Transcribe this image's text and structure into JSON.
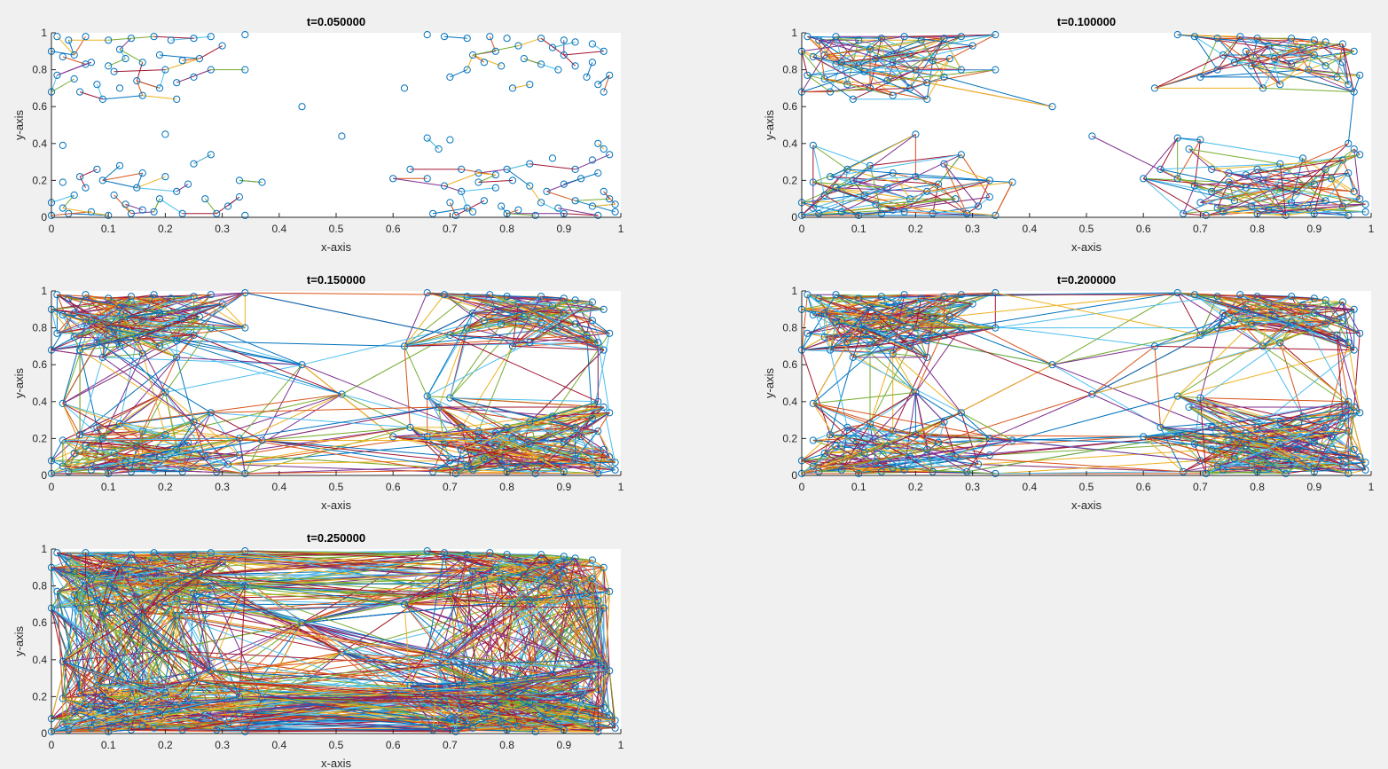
{
  "figure": {
    "background": "#f0f0f0",
    "axes_background": "#ffffff",
    "marker_color": "#0072bd",
    "line_colors": [
      "#0072bd",
      "#d95319",
      "#edb120",
      "#7e2f8e",
      "#77ac30",
      "#4dbeee",
      "#a2142f"
    ]
  },
  "chart_data": [
    {
      "type": "scatter",
      "title": "t=0.050000",
      "xlabel": "x-axis",
      "ylabel": "y-axis",
      "xlim": [
        0,
        1
      ],
      "ylim": [
        0,
        1
      ],
      "xticks": [
        0,
        0.1,
        0.2,
        0.3,
        0.4,
        0.5,
        0.6,
        0.7,
        0.8,
        0.9,
        1
      ],
      "yticks": [
        0,
        0.2,
        0.4,
        0.6,
        0.8,
        1
      ],
      "xtick_labels": [
        "0",
        "0.1",
        "0.2",
        "0.3",
        "0.4",
        "0.5",
        "0.6",
        "0.7",
        "0.8",
        "0.9",
        "1"
      ],
      "ytick_labels": [
        "0",
        "0.2",
        "0.4",
        "0.6",
        "0.8",
        "1"
      ],
      "grid": false,
      "marker": "open-circle",
      "connection_density": "sparse"
    },
    {
      "type": "scatter",
      "title": "t=0.100000",
      "xlabel": "x-axis",
      "ylabel": "y-axis",
      "xlim": [
        0,
        1
      ],
      "ylim": [
        0,
        1
      ],
      "xticks": [
        0,
        0.1,
        0.2,
        0.3,
        0.4,
        0.5,
        0.6,
        0.7,
        0.8,
        0.9,
        1
      ],
      "yticks": [
        0,
        0.2,
        0.4,
        0.6,
        0.8,
        1
      ],
      "xtick_labels": [
        "0",
        "0.1",
        "0.2",
        "0.3",
        "0.4",
        "0.5",
        "0.6",
        "0.7",
        "0.8",
        "0.9",
        "1"
      ],
      "ytick_labels": [
        "0",
        "0.2",
        "0.4",
        "0.6",
        "0.8",
        "1"
      ],
      "grid": false,
      "marker": "open-circle",
      "connection_density": "moderate"
    },
    {
      "type": "scatter",
      "title": "t=0.150000",
      "xlabel": "x-axis",
      "ylabel": "y-axis",
      "xlim": [
        0,
        1
      ],
      "ylim": [
        0,
        1
      ],
      "xticks": [
        0,
        0.1,
        0.2,
        0.3,
        0.4,
        0.5,
        0.6,
        0.7,
        0.8,
        0.9,
        1
      ],
      "yticks": [
        0,
        0.2,
        0.4,
        0.6,
        0.8,
        1
      ],
      "xtick_labels": [
        "0",
        "0.1",
        "0.2",
        "0.3",
        "0.4",
        "0.5",
        "0.6",
        "0.7",
        "0.8",
        "0.9",
        "1"
      ],
      "ytick_labels": [
        "0",
        "0.2",
        "0.4",
        "0.6",
        "0.8",
        "1"
      ],
      "grid": false,
      "marker": "open-circle",
      "connection_density": "dense"
    },
    {
      "type": "scatter",
      "title": "t=0.200000",
      "xlabel": "x-axis",
      "ylabel": "y-axis",
      "xlim": [
        0,
        1
      ],
      "ylim": [
        0,
        1
      ],
      "xticks": [
        0,
        0.1,
        0.2,
        0.3,
        0.4,
        0.5,
        0.6,
        0.7,
        0.8,
        0.9,
        1
      ],
      "yticks": [
        0,
        0.2,
        0.4,
        0.6,
        0.8,
        1
      ],
      "xtick_labels": [
        "0",
        "0.1",
        "0.2",
        "0.3",
        "0.4",
        "0.5",
        "0.6",
        "0.7",
        "0.8",
        "0.9",
        "1"
      ],
      "ytick_labels": [
        "0",
        "0.2",
        "0.4",
        "0.6",
        "0.8",
        "1"
      ],
      "grid": false,
      "marker": "open-circle",
      "connection_density": "dense"
    },
    {
      "type": "scatter",
      "title": "t=0.250000",
      "xlabel": "x-axis",
      "ylabel": "y-axis",
      "xlim": [
        0,
        1
      ],
      "ylim": [
        0,
        1
      ],
      "xticks": [
        0,
        0.1,
        0.2,
        0.3,
        0.4,
        0.5,
        0.6,
        0.7,
        0.8,
        0.9,
        1
      ],
      "yticks": [
        0,
        0.2,
        0.4,
        0.6,
        0.8,
        1
      ],
      "xtick_labels": [
        "0",
        "0.1",
        "0.2",
        "0.3",
        "0.4",
        "0.5",
        "0.6",
        "0.7",
        "0.8",
        "0.9",
        "1"
      ],
      "ytick_labels": [
        "0",
        "0.2",
        "0.4",
        "0.6",
        "0.8",
        "1"
      ],
      "grid": false,
      "marker": "open-circle",
      "connection_density": "very-dense"
    }
  ],
  "nodes": [
    [
      0.01,
      0.98
    ],
    [
      0.03,
      0.96
    ],
    [
      0.06,
      0.98
    ],
    [
      0.1,
      0.96
    ],
    [
      0.14,
      0.97
    ],
    [
      0.18,
      0.98
    ],
    [
      0.21,
      0.96
    ],
    [
      0.25,
      0.97
    ],
    [
      0.28,
      0.98
    ],
    [
      0.34,
      0.99
    ],
    [
      0.0,
      0.9
    ],
    [
      0.02,
      0.87
    ],
    [
      0.04,
      0.88
    ],
    [
      0.07,
      0.84
    ],
    [
      0.1,
      0.82
    ],
    [
      0.13,
      0.86
    ],
    [
      0.16,
      0.84
    ],
    [
      0.19,
      0.88
    ],
    [
      0.23,
      0.85
    ],
    [
      0.26,
      0.86
    ],
    [
      0.01,
      0.77
    ],
    [
      0.04,
      0.75
    ],
    [
      0.08,
      0.72
    ],
    [
      0.11,
      0.79
    ],
    [
      0.15,
      0.74
    ],
    [
      0.19,
      0.7
    ],
    [
      0.22,
      0.73
    ],
    [
      0.25,
      0.76
    ],
    [
      0.28,
      0.8
    ],
    [
      0.34,
      0.8
    ],
    [
      0.0,
      0.68
    ],
    [
      0.05,
      0.68
    ],
    [
      0.09,
      0.64
    ],
    [
      0.12,
      0.7
    ],
    [
      0.16,
      0.66
    ],
    [
      0.22,
      0.64
    ],
    [
      0.06,
      0.83
    ],
    [
      0.12,
      0.91
    ],
    [
      0.2,
      0.8
    ],
    [
      0.3,
      0.93
    ],
    [
      0.66,
      0.99
    ],
    [
      0.69,
      0.98
    ],
    [
      0.73,
      0.97
    ],
    [
      0.77,
      0.98
    ],
    [
      0.8,
      0.97
    ],
    [
      0.86,
      0.97
    ],
    [
      0.9,
      0.96
    ],
    [
      0.92,
      0.95
    ],
    [
      0.95,
      0.94
    ],
    [
      0.97,
      0.9
    ],
    [
      0.7,
      0.76
    ],
    [
      0.73,
      0.8
    ],
    [
      0.76,
      0.84
    ],
    [
      0.79,
      0.82
    ],
    [
      0.83,
      0.86
    ],
    [
      0.86,
      0.83
    ],
    [
      0.89,
      0.8
    ],
    [
      0.92,
      0.82
    ],
    [
      0.95,
      0.84
    ],
    [
      0.98,
      0.77
    ],
    [
      0.74,
      0.88
    ],
    [
      0.78,
      0.9
    ],
    [
      0.82,
      0.93
    ],
    [
      0.88,
      0.92
    ],
    [
      0.9,
      0.88
    ],
    [
      0.94,
      0.76
    ],
    [
      0.96,
      0.72
    ],
    [
      0.97,
      0.68
    ],
    [
      0.84,
      0.72
    ],
    [
      0.81,
      0.7
    ],
    [
      0.0,
      0.08
    ],
    [
      0.02,
      0.05
    ],
    [
      0.04,
      0.12
    ],
    [
      0.06,
      0.16
    ],
    [
      0.09,
      0.2
    ],
    [
      0.11,
      0.12
    ],
    [
      0.13,
      0.07
    ],
    [
      0.16,
      0.04
    ],
    [
      0.19,
      0.1
    ],
    [
      0.22,
      0.14
    ],
    [
      0.02,
      0.19
    ],
    [
      0.05,
      0.22
    ],
    [
      0.08,
      0.26
    ],
    [
      0.12,
      0.28
    ],
    [
      0.16,
      0.24
    ],
    [
      0.2,
      0.22
    ],
    [
      0.24,
      0.18
    ],
    [
      0.27,
      0.1
    ],
    [
      0.31,
      0.06
    ],
    [
      0.33,
      0.11
    ],
    [
      0.0,
      0.01
    ],
    [
      0.03,
      0.02
    ],
    [
      0.07,
      0.03
    ],
    [
      0.1,
      0.01
    ],
    [
      0.14,
      0.02
    ],
    [
      0.18,
      0.03
    ],
    [
      0.23,
      0.02
    ],
    [
      0.29,
      0.02
    ],
    [
      0.34,
      0.01
    ],
    [
      0.15,
      0.16
    ],
    [
      0.66,
      0.21
    ],
    [
      0.69,
      0.17
    ],
    [
      0.72,
      0.14
    ],
    [
      0.75,
      0.19
    ],
    [
      0.78,
      0.16
    ],
    [
      0.81,
      0.2
    ],
    [
      0.84,
      0.17
    ],
    [
      0.87,
      0.14
    ],
    [
      0.9,
      0.18
    ],
    [
      0.93,
      0.21
    ],
    [
      0.7,
      0.08
    ],
    [
      0.73,
      0.05
    ],
    [
      0.76,
      0.09
    ],
    [
      0.79,
      0.06
    ],
    [
      0.82,
      0.04
    ],
    [
      0.86,
      0.08
    ],
    [
      0.89,
      0.05
    ],
    [
      0.92,
      0.09
    ],
    [
      0.95,
      0.06
    ],
    [
      0.98,
      0.1
    ],
    [
      0.67,
      0.02
    ],
    [
      0.71,
      0.01
    ],
    [
      0.74,
      0.03
    ],
    [
      0.8,
      0.02
    ],
    [
      0.85,
      0.01
    ],
    [
      0.9,
      0.02
    ],
    [
      0.96,
      0.01
    ],
    [
      0.99,
      0.03
    ],
    [
      0.97,
      0.14
    ],
    [
      0.99,
      0.07
    ],
    [
      0.75,
      0.24
    ],
    [
      0.8,
      0.26
    ],
    [
      0.84,
      0.29
    ],
    [
      0.88,
      0.32
    ],
    [
      0.92,
      0.26
    ],
    [
      0.95,
      0.31
    ],
    [
      0.97,
      0.37
    ],
    [
      0.96,
      0.24
    ],
    [
      0.72,
      0.26
    ],
    [
      0.78,
      0.23
    ],
    [
      0.44,
      0.6
    ],
    [
      0.51,
      0.44
    ],
    [
      0.6,
      0.21
    ],
    [
      0.62,
      0.7
    ],
    [
      0.66,
      0.43
    ],
    [
      0.7,
      0.42
    ],
    [
      0.68,
      0.37
    ],
    [
      0.63,
      0.26
    ],
    [
      0.2,
      0.45
    ],
    [
      0.02,
      0.39
    ],
    [
      0.37,
      0.19
    ],
    [
      0.28,
      0.34
    ],
    [
      0.96,
      0.4
    ],
    [
      0.98,
      0.34
    ],
    [
      0.33,
      0.2
    ],
    [
      0.25,
      0.29
    ]
  ]
}
